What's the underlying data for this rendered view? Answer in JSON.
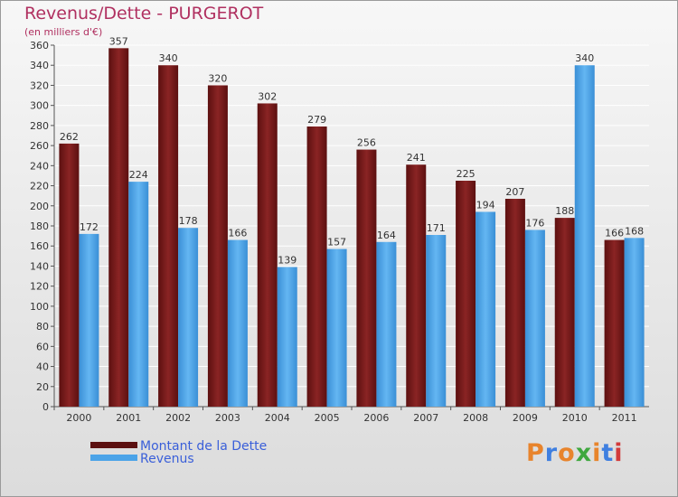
{
  "chart_data": {
    "type": "bar",
    "title": "Revenus/Dette - PURGEROT",
    "subtitle": "(en milliers d'€)",
    "categories": [
      "2000",
      "2001",
      "2002",
      "2003",
      "2004",
      "2005",
      "2006",
      "2007",
      "2008",
      "2009",
      "2010",
      "2011"
    ],
    "series": [
      {
        "name": "Montant de la Dette",
        "color": "#7a1a1a",
        "values": [
          262,
          357,
          340,
          320,
          302,
          279,
          256,
          241,
          225,
          207,
          188,
          166
        ]
      },
      {
        "name": "Revenus",
        "color": "#4aa3e8",
        "values": [
          172,
          224,
          178,
          166,
          139,
          157,
          164,
          171,
          194,
          176,
          340,
          168
        ]
      }
    ],
    "ylim": [
      0,
      360
    ],
    "ytick_step": 20,
    "grid": true,
    "legend_position": "bottom-left"
  },
  "brand": {
    "text": "Proxiti",
    "colors": [
      "#e8842c",
      "#3f7fe0",
      "#e8842c",
      "#3fa83f",
      "#e8842c",
      "#3f7fe0",
      "#d23a3a"
    ]
  }
}
